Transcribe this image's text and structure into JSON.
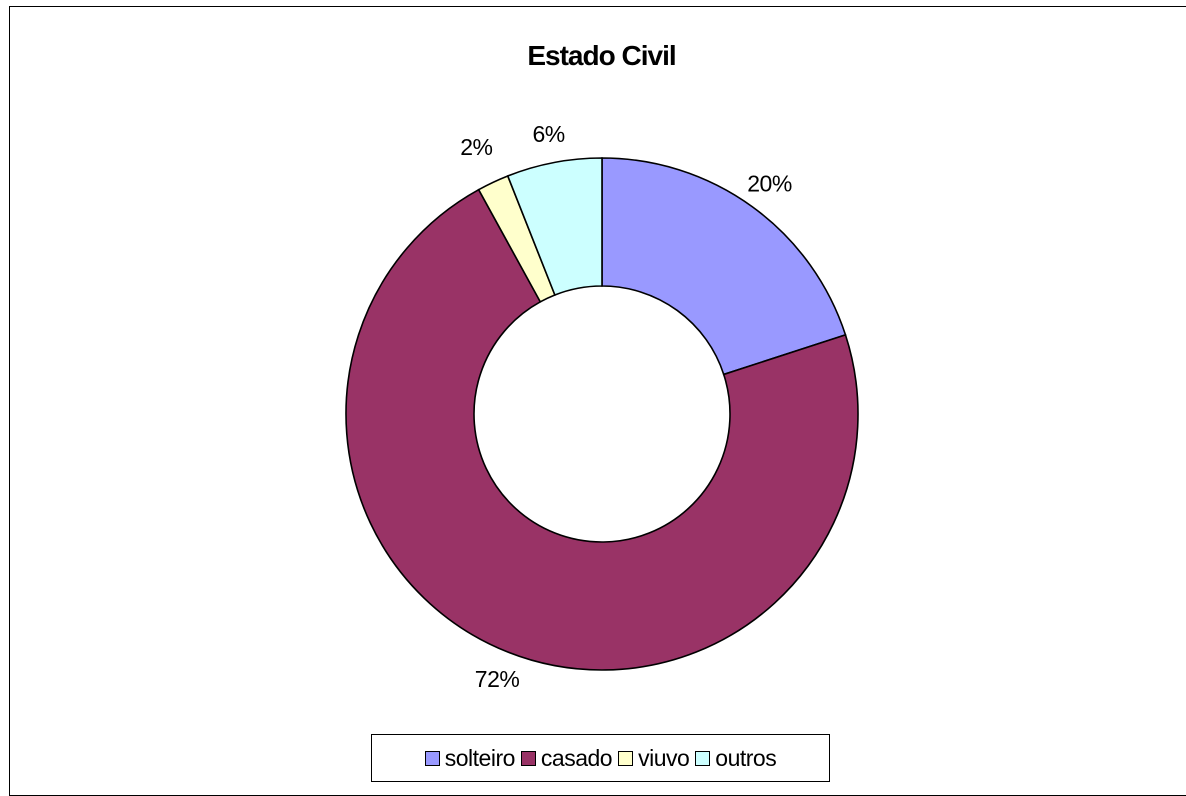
{
  "chart_data": {
    "type": "pie",
    "variant": "donut",
    "title": "Estado Civil",
    "categories": [
      "solteiro",
      "casado",
      "viuvo",
      "outros"
    ],
    "values": [
      20,
      72,
      2,
      6
    ],
    "labels": [
      "20%",
      "72%",
      "2%",
      "6%"
    ],
    "colors": [
      "#9999FF",
      "#993366",
      "#FFFFCC",
      "#CCFFFF"
    ],
    "legend_position": "bottom"
  }
}
